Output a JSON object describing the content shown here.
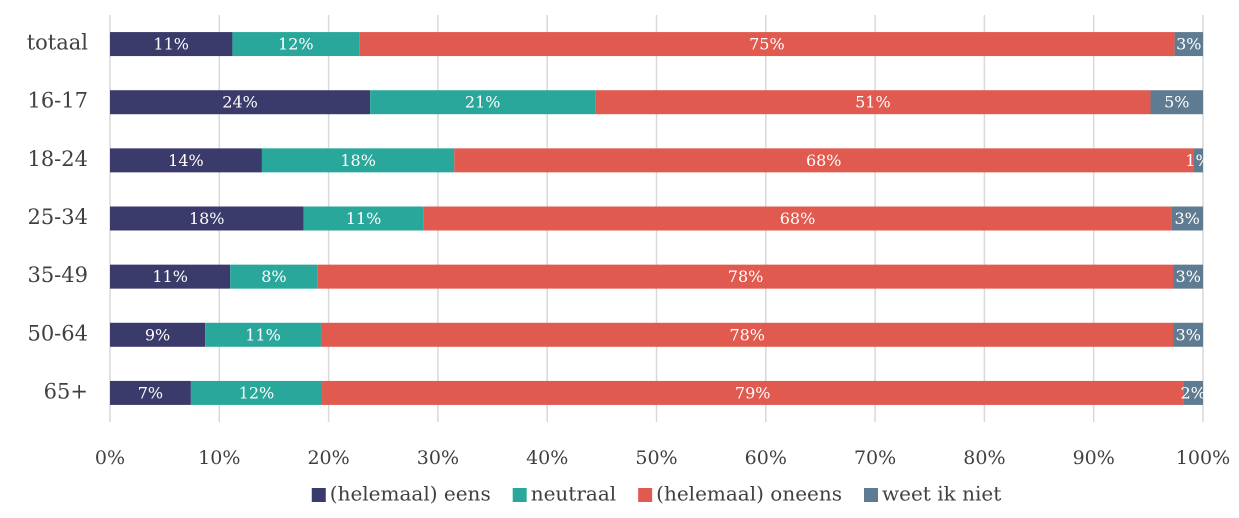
{
  "chart_data": {
    "type": "stacked-bar-horizontal",
    "categories": [
      "totaal",
      "16-17",
      "18-24",
      "25-34",
      "35-49",
      "50-64",
      "65+"
    ],
    "series": [
      {
        "name": "(helemaal) eens",
        "color": "#3b3b6b",
        "values": [
          11.2,
          23.8,
          13.9,
          17.7,
          11.0,
          8.7,
          7.4
        ],
        "value_labels": [
          "11%",
          "24%",
          "14%",
          "18%",
          "11%",
          "9%",
          "7%"
        ]
      },
      {
        "name": "neutraal",
        "color": "#2aa79b",
        "values": [
          11.6,
          20.6,
          17.6,
          11.0,
          8.0,
          10.6,
          12.0
        ],
        "value_labels": [
          "12%",
          "21%",
          "18%",
          "11%",
          "8%",
          "11%",
          "12%"
        ]
      },
      {
        "name": "(helemaal) oneens",
        "color": "#e05a50",
        "values": [
          74.6,
          50.8,
          67.6,
          68.4,
          78.3,
          78.0,
          78.8
        ],
        "value_labels": [
          "75%",
          "51%",
          "68%",
          "68%",
          "78%",
          "78%",
          "79%"
        ]
      },
      {
        "name": "weet ik niet",
        "color": "#5f7b91",
        "values": [
          2.6,
          4.8,
          0.9,
          2.9,
          2.7,
          2.7,
          1.8
        ],
        "value_labels": [
          "3%",
          "5%",
          "1%",
          "3%",
          "3%",
          "3%",
          "2%"
        ]
      }
    ],
    "xlim": [
      0,
      100
    ],
    "xticks": [
      {
        "value": 0,
        "label": "0%"
      },
      {
        "value": 10,
        "label": "10%"
      },
      {
        "value": 20,
        "label": "20%"
      },
      {
        "value": 30,
        "label": "30%"
      },
      {
        "value": 40,
        "label": "40%"
      },
      {
        "value": 50,
        "label": "50%"
      },
      {
        "value": 60,
        "label": "60%"
      },
      {
        "value": 70,
        "label": "70%"
      },
      {
        "value": 80,
        "label": "80%"
      },
      {
        "value": 90,
        "label": "90%"
      },
      {
        "value": 100,
        "label": "100%"
      }
    ],
    "grid": true,
    "legend": "bottom"
  }
}
